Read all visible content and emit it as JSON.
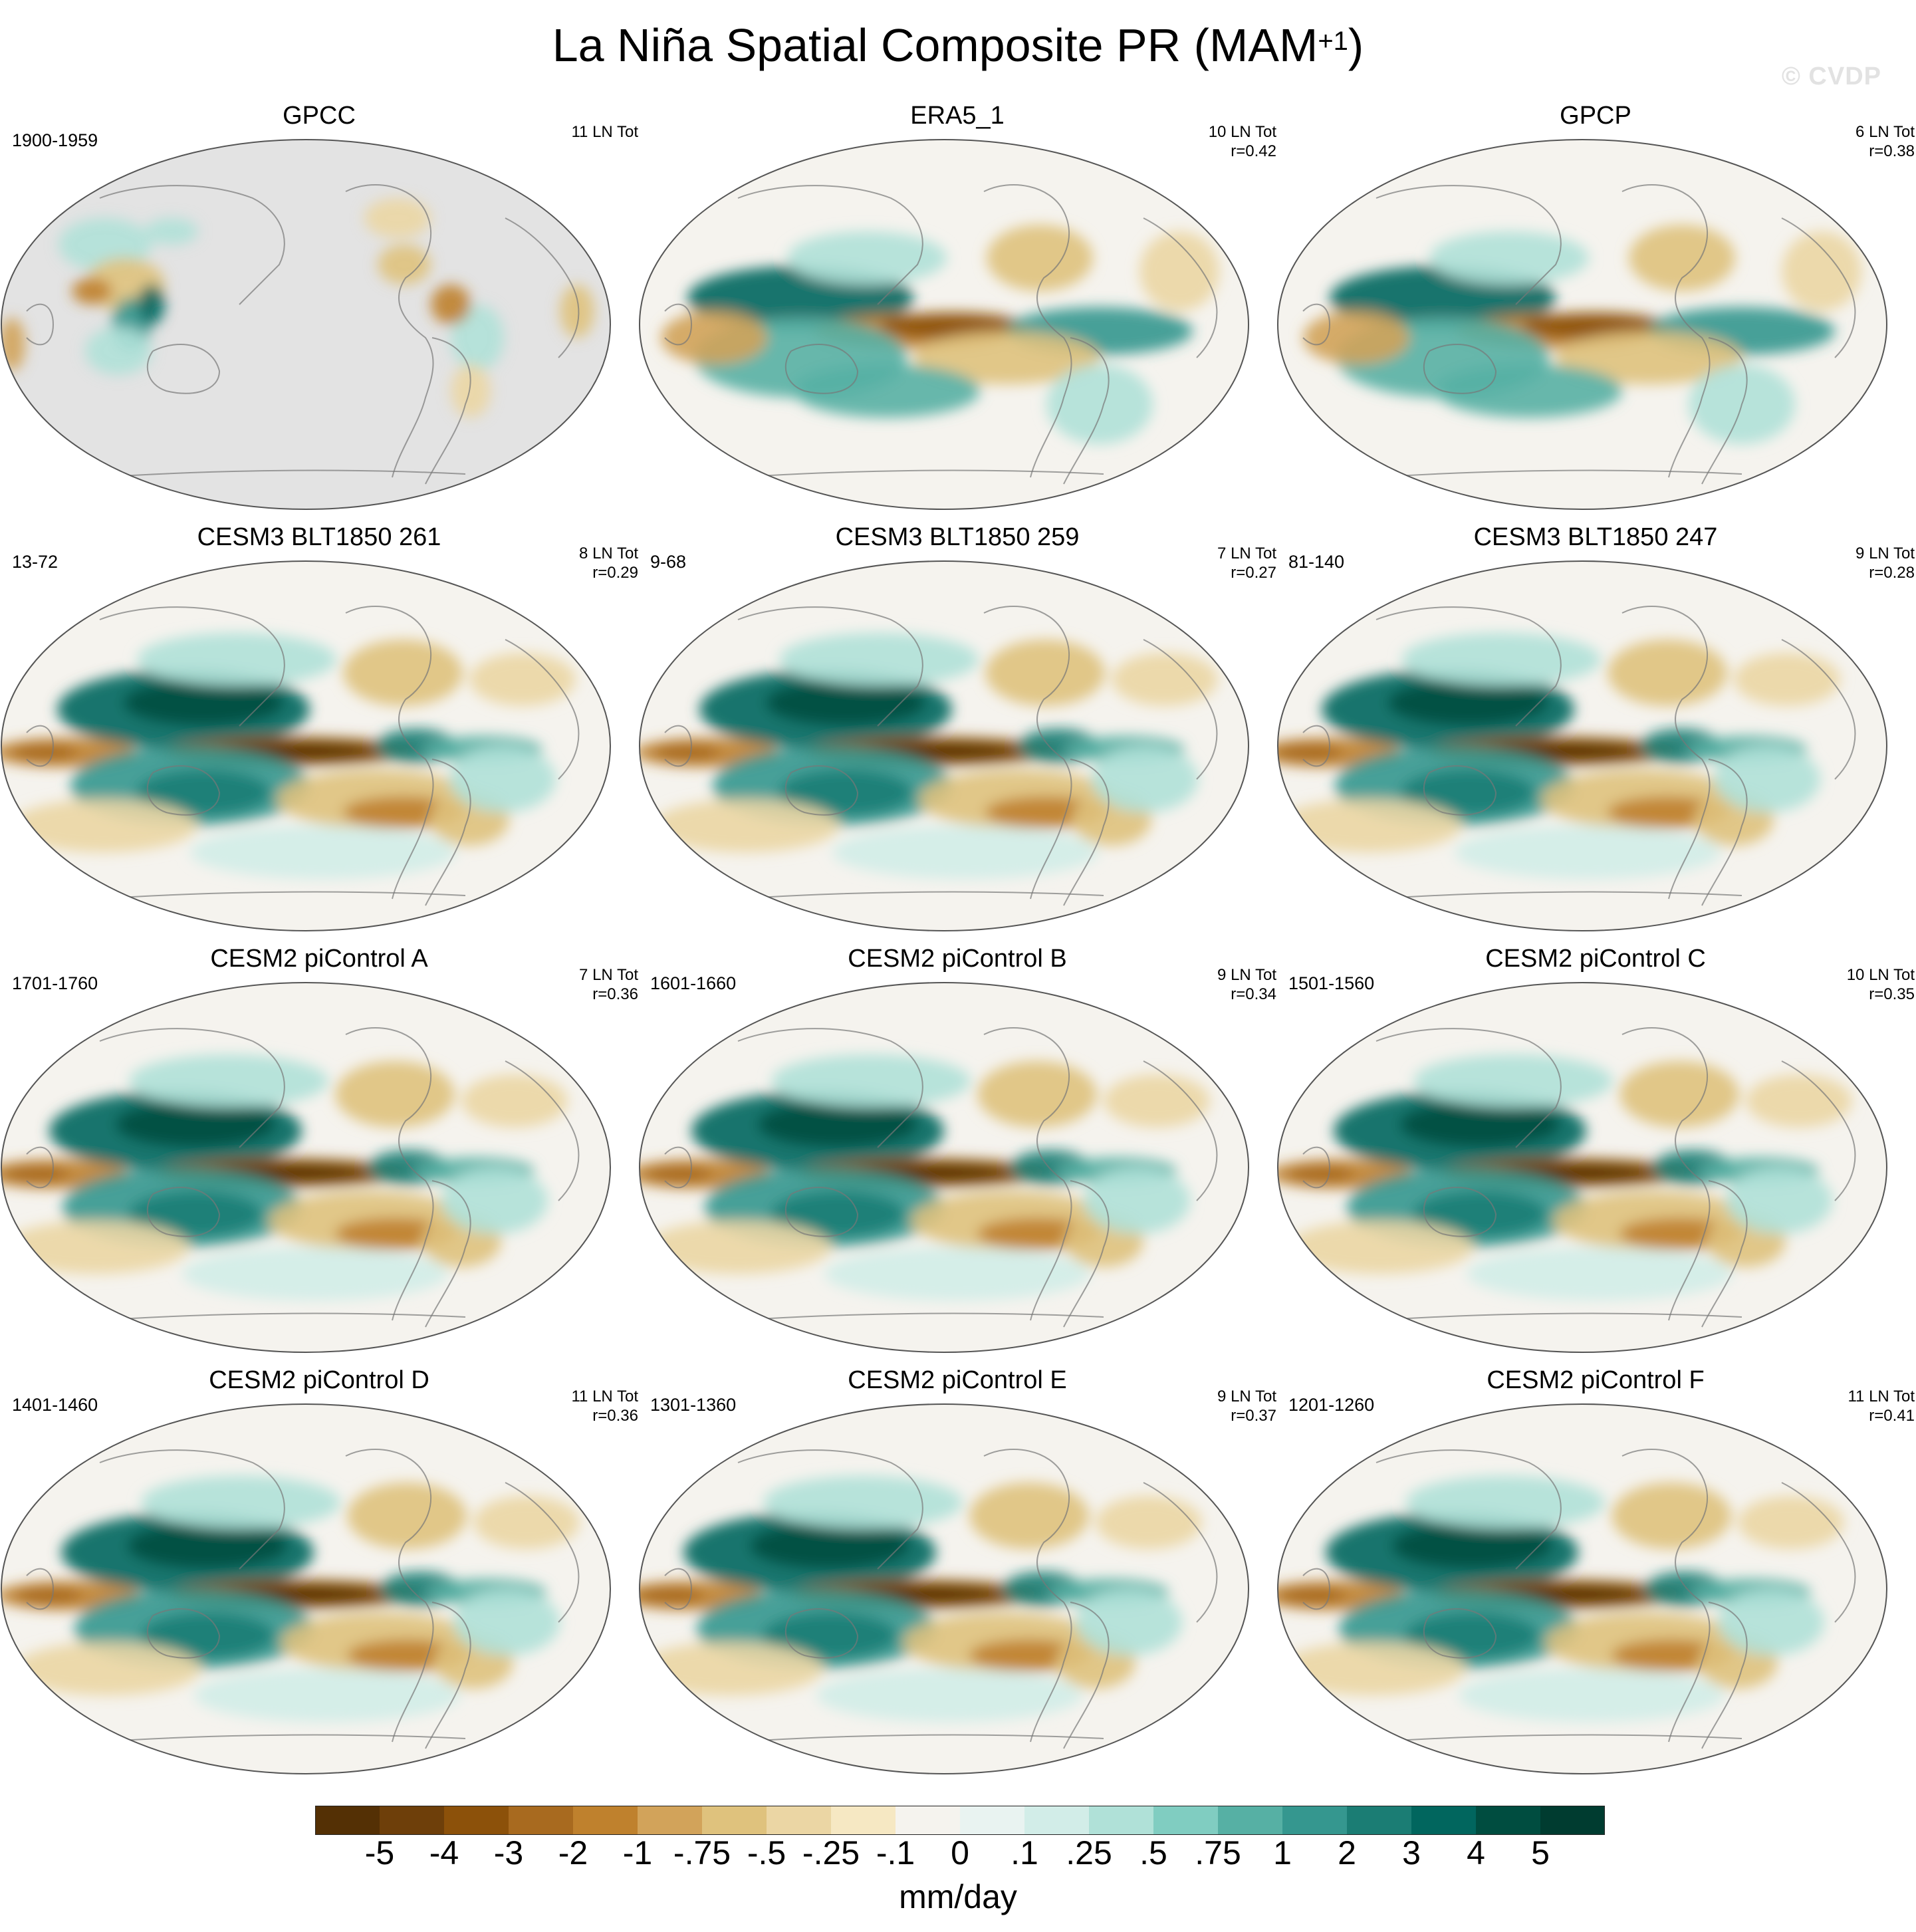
{
  "figure": {
    "title_main": "La Niña Spatial Composite PR (MAM",
    "title_sup": "+1",
    "title_end": ")",
    "watermark": "© CVDP"
  },
  "panels": [
    {
      "title": "GPCC",
      "years": "1900-1959",
      "count": "11 LN Tot",
      "corr": "",
      "style": "gpcc"
    },
    {
      "title": "ERA5_1",
      "years": "",
      "count": "10 LN Tot",
      "corr": "r=0.42",
      "style": "obs"
    },
    {
      "title": "GPCP",
      "years": "",
      "count": "6 LN Tot",
      "corr": "r=0.38",
      "style": "obs"
    },
    {
      "title": "CESM3 BLT1850 261",
      "years": "13-72",
      "count": "8 LN Tot",
      "corr": "r=0.29",
      "style": "model"
    },
    {
      "title": "CESM3 BLT1850 259",
      "years": "9-68",
      "count": "7 LN Tot",
      "corr": "r=0.27",
      "style": "model"
    },
    {
      "title": "CESM3 BLT1850 247",
      "years": "81-140",
      "count": "9 LN Tot",
      "corr": "r=0.28",
      "style": "model"
    },
    {
      "title": "CESM2 piControl A",
      "years": "1701-1760",
      "count": "7 LN Tot",
      "corr": "r=0.36",
      "style": "model"
    },
    {
      "title": "CESM2 piControl B",
      "years": "1601-1660",
      "count": "9 LN Tot",
      "corr": "r=0.34",
      "style": "model"
    },
    {
      "title": "CESM2 piControl C",
      "years": "1501-1560",
      "count": "10 LN Tot",
      "corr": "r=0.35",
      "style": "model"
    },
    {
      "title": "CESM2 piControl D",
      "years": "1401-1460",
      "count": "11 LN Tot",
      "corr": "r=0.36",
      "style": "model"
    },
    {
      "title": "CESM2 piControl E",
      "years": "1301-1360",
      "count": "9 LN Tot",
      "corr": "r=0.37",
      "style": "model"
    },
    {
      "title": "CESM2 piControl F",
      "years": "1201-1260",
      "count": "11 LN Tot",
      "corr": "r=0.41",
      "style": "model"
    }
  ],
  "colorbar": {
    "units": "mm/day",
    "ticks": [
      "-5",
      "-4",
      "-3",
      "-2",
      "-1",
      "-.75",
      "-.5",
      "-.25",
      "-.1",
      "0",
      ".1",
      ".25",
      ".5",
      ".75",
      "1",
      "2",
      "3",
      "4",
      "5"
    ],
    "colors": [
      "#543005",
      "#6e3f0a",
      "#8c510a",
      "#a86a1f",
      "#bf812d",
      "#d2a35a",
      "#dfc27d",
      "#ebd6a4",
      "#f6e8c3",
      "#f5f3ee",
      "#e9f3f1",
      "#d2ede8",
      "#b0e1d8",
      "#80cdc1",
      "#56b0a4",
      "#35978f",
      "#1b7d74",
      "#01665e",
      "#004d40",
      "#003c30"
    ]
  }
}
